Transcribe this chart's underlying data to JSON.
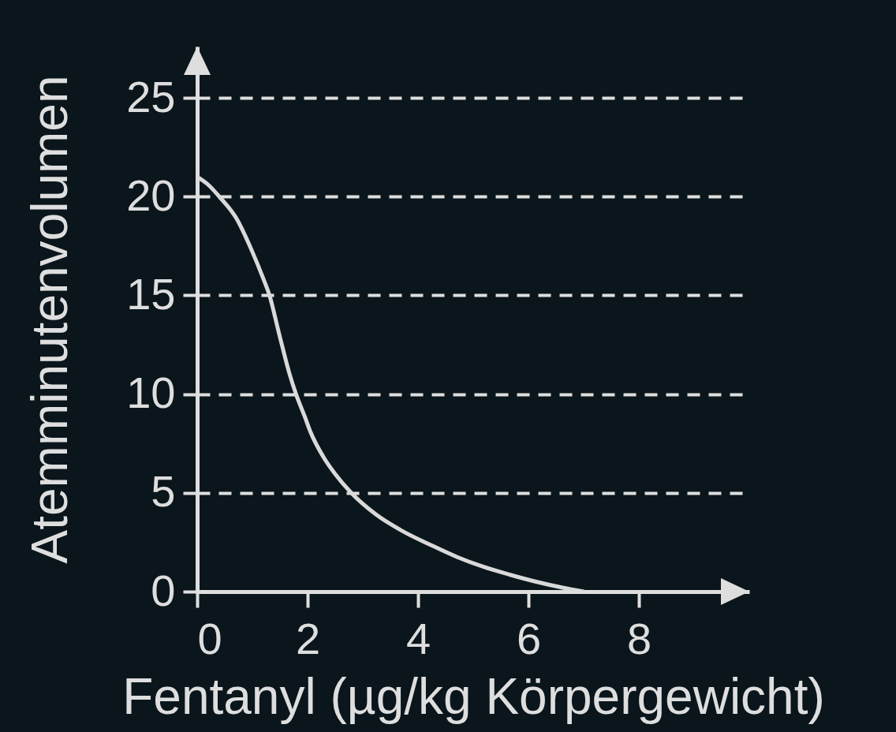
{
  "chart_data": {
    "type": "line",
    "xlabel": "Fentanyl (µg/kg Körpergewicht)",
    "ylabel": "Atemminutenvolumen",
    "x": [
      0,
      0.2,
      0.4,
      0.71,
      1.0,
      1.19,
      1.31,
      1.48,
      1.67,
      1.79,
      1.95,
      2.05,
      2.29,
      2.5,
      2.79,
      3.24,
      3.76,
      4.24,
      4.71,
      5.19,
      5.67,
      6.14,
      6.62,
      7.0
    ],
    "values": [
      21,
      20.6,
      20,
      18.9,
      17.2,
      15.9,
      15,
      13.1,
      11.05,
      10,
      8.85,
      8.1,
      6.8,
      5.95,
      5,
      3.9,
      3.0,
      2.35,
      1.75,
      1.25,
      0.85,
      0.5,
      0.2,
      0
    ],
    "color": "#d9d9d9",
    "line_style": "solid",
    "xlim": [
      0,
      10
    ],
    "ylim": [
      0,
      27.6
    ],
    "xticks": [
      0,
      2,
      4,
      6,
      8
    ],
    "yticks": [
      0,
      5,
      10,
      15,
      20,
      25
    ],
    "grid": "y"
  }
}
